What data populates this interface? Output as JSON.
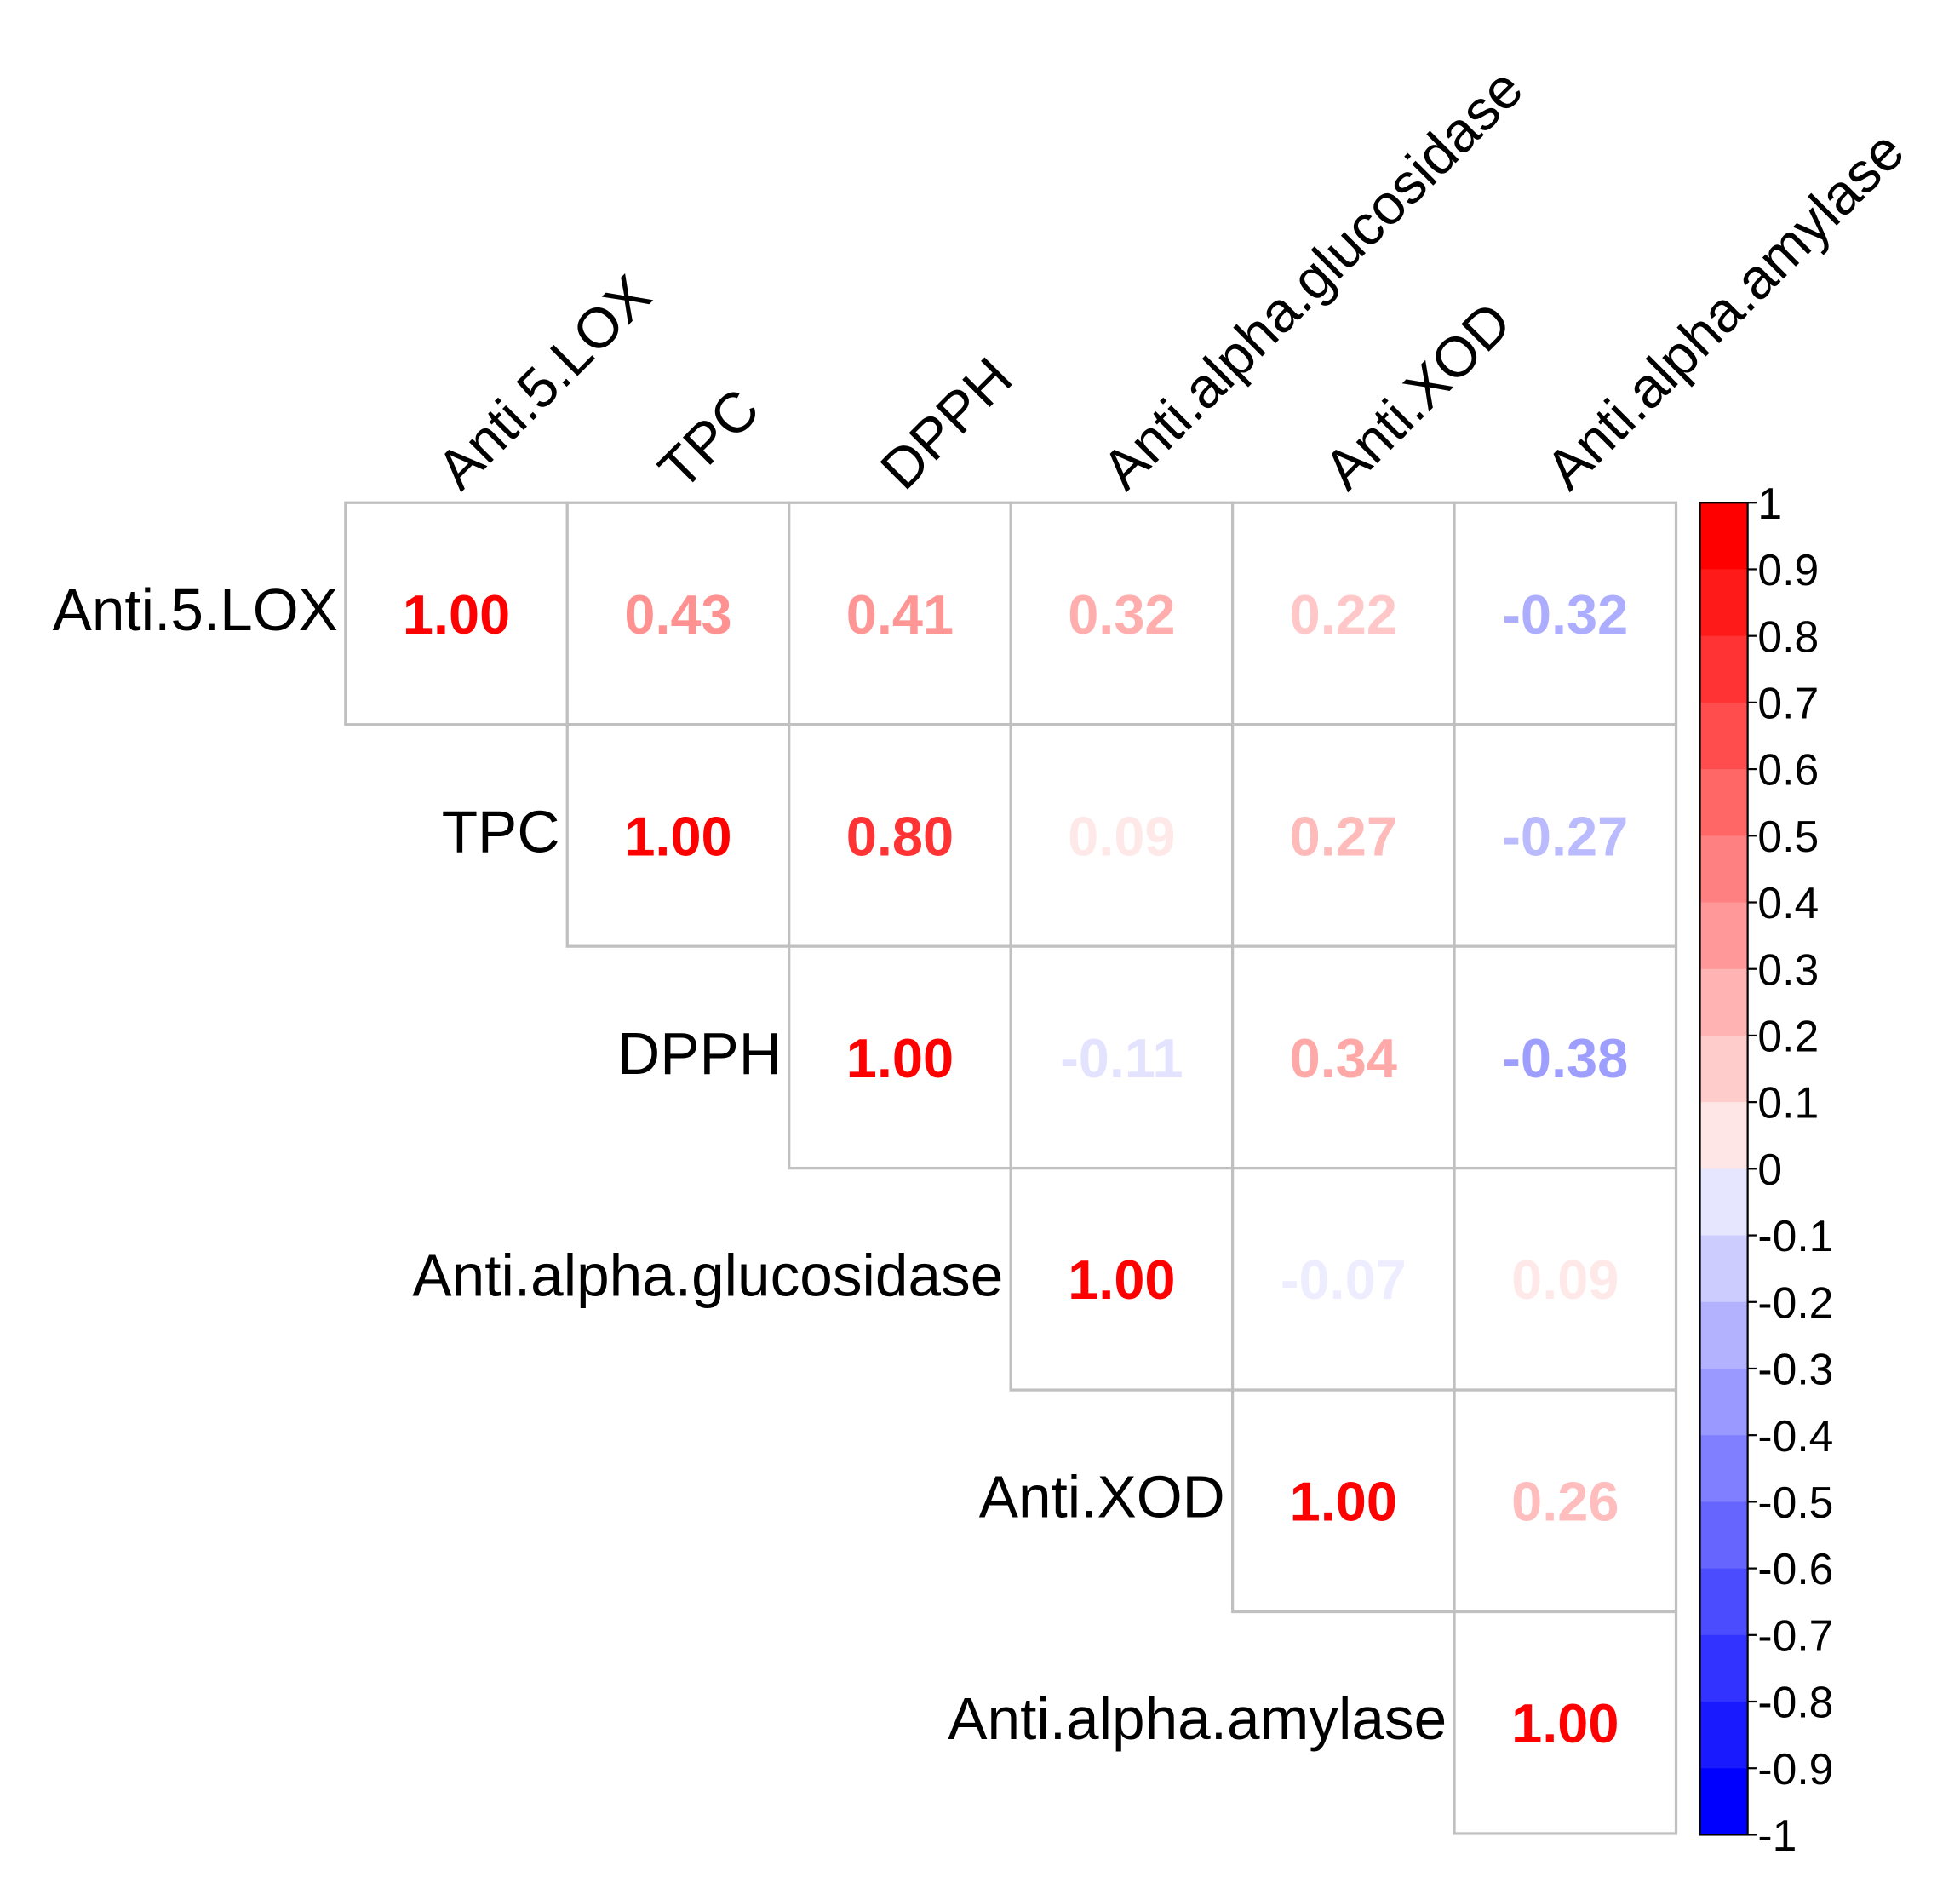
{
  "chart_data": {
    "type": "heatmap",
    "variables": [
      "Anti.5.LOX",
      "TPC",
      "DPPH",
      "Anti.alpha.glucosidase",
      "Anti.XOD",
      "Anti.alpha.amylase"
    ],
    "matrix_shape": "upper-triangular",
    "values": [
      [
        1.0,
        0.43,
        0.41,
        0.32,
        0.22,
        -0.32
      ],
      [
        null,
        1.0,
        0.8,
        0.09,
        0.27,
        -0.27
      ],
      [
        null,
        null,
        1.0,
        -0.11,
        0.34,
        -0.38
      ],
      [
        null,
        null,
        null,
        1.0,
        -0.07,
        0.09
      ],
      [
        null,
        null,
        null,
        null,
        1.0,
        0.26
      ],
      [
        null,
        null,
        null,
        null,
        null,
        1.0
      ]
    ],
    "value_labels": [
      [
        "1.00",
        "0.43",
        "0.41",
        "0.32",
        "0.22",
        "-0.32"
      ],
      [
        null,
        "1.00",
        "0.80",
        "0.09",
        "0.27",
        "-0.27"
      ],
      [
        null,
        null,
        "1.00",
        "-0.11",
        "0.34",
        "-0.38"
      ],
      [
        null,
        null,
        null,
        "1.00",
        "-0.07",
        "0.09"
      ],
      [
        null,
        null,
        null,
        null,
        "1.00",
        "0.26"
      ],
      [
        null,
        null,
        null,
        null,
        null,
        "1.00"
      ]
    ],
    "colorbar": {
      "range": [
        -1,
        1
      ],
      "ticks": [
        "1",
        "0.9",
        "0.8",
        "0.7",
        "0.6",
        "0.5",
        "0.4",
        "0.3",
        "0.2",
        "0.1",
        "0",
        "-0.1",
        "-0.2",
        "-0.3",
        "-0.4",
        "-0.5",
        "-0.6",
        "-0.7",
        "-0.8",
        "-0.9",
        "-1"
      ],
      "positive_color": "#ff0000",
      "negative_color": "#0000ff",
      "mid_color": "#ffffff"
    },
    "grid_color": "#c0c0c0",
    "legend_placement": "right"
  }
}
